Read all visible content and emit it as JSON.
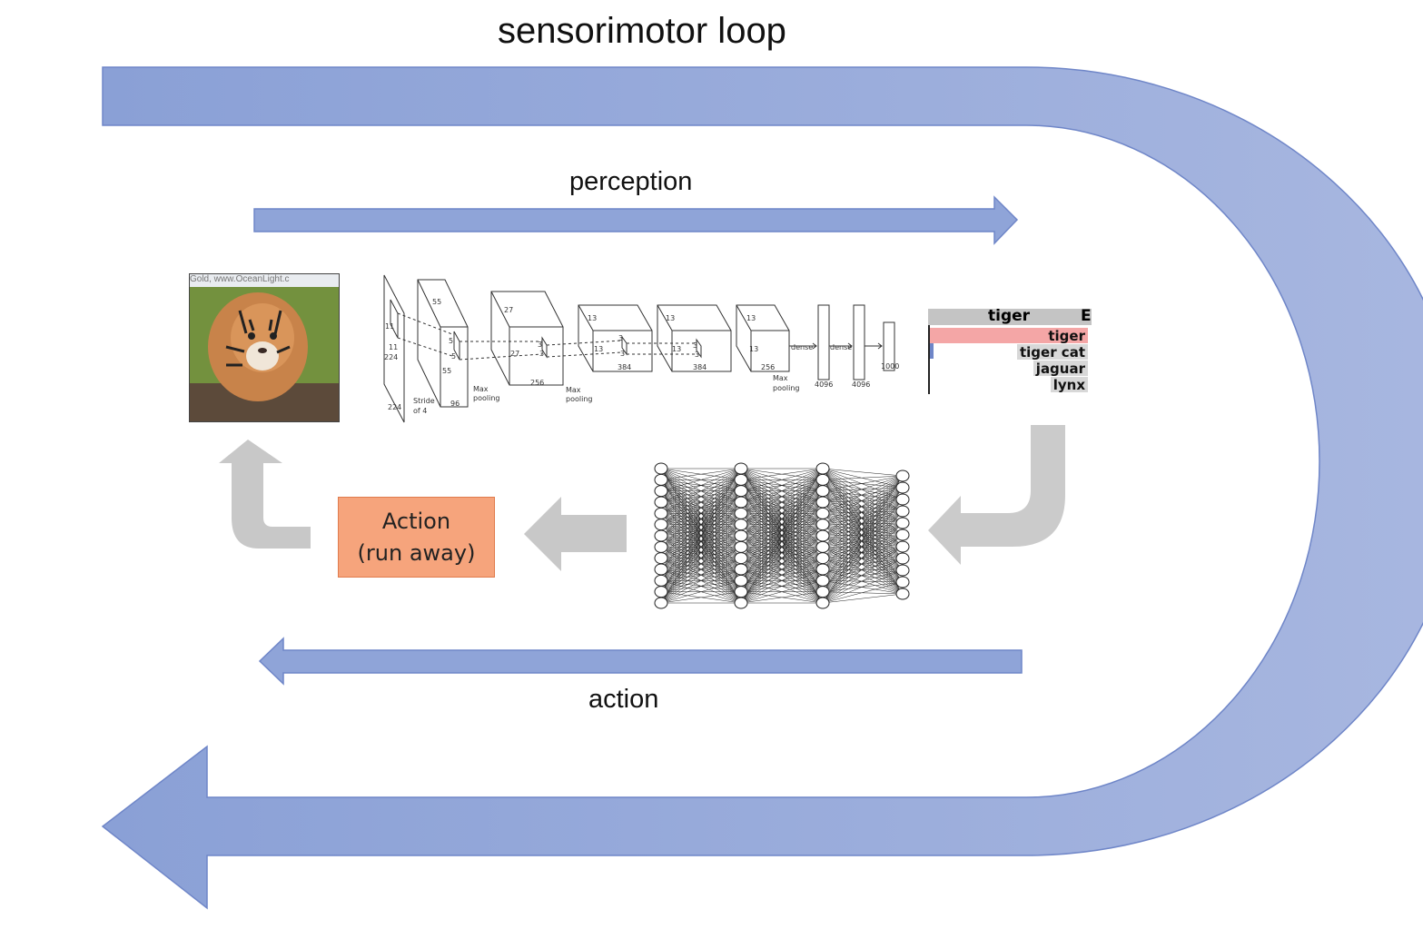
{
  "title": "sensorimotor loop",
  "perception_label": "perception",
  "action_label": "action",
  "action_box": {
    "line1": "Action",
    "line2": "(run away)"
  },
  "tiger_image": {
    "watermark": "Gold, www.OceanLight.c"
  },
  "cnn": {
    "labels": [
      "11",
      "11",
      "224",
      "224",
      "Stride of 4",
      "55",
      "5",
      "5",
      "55",
      "96",
      "Max pooling",
      "27",
      "27",
      "256",
      "3",
      "3",
      "Max pooling",
      "13",
      "13",
      "3",
      "3",
      "384",
      "13",
      "13",
      "3",
      "3",
      "384",
      "13",
      "13",
      "256",
      "Max pooling",
      "dense",
      "dense",
      "4096",
      "4096",
      "1000"
    ]
  },
  "predictions": {
    "header": "tiger",
    "header_cut": "E",
    "items": [
      "tiger",
      "tiger cat",
      "jaguar",
      "lynx"
    ]
  },
  "colors": {
    "loop_arrow": "#8fa4d8",
    "loop_arrow_edge": "#6f86c8",
    "gray_arrow": "#c8c8c8",
    "action_box": "#f6a47c"
  },
  "icons": {
    "loop": "u-turn-arrow-icon",
    "perception": "right-arrow-icon",
    "action": "left-arrow-icon",
    "flow_down": "bent-arrow-icon",
    "flow_left": "left-block-arrow-icon",
    "flow_up": "up-bent-arrow-icon"
  }
}
